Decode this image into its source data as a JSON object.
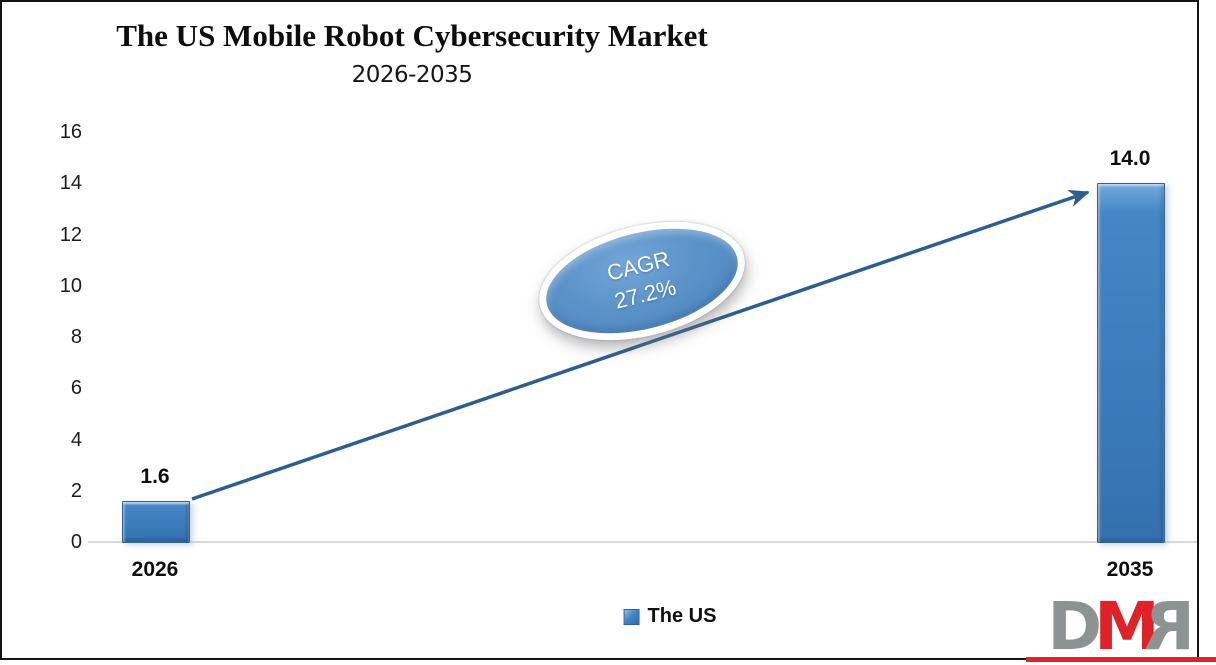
{
  "chart_data": {
    "type": "bar",
    "title": "The US Mobile Robot Cybersecurity Market",
    "subtitle": "2026-2035",
    "categories": [
      "2026",
      "2035"
    ],
    "series": [
      {
        "name": "The US",
        "values": [
          1.6,
          14.0
        ]
      }
    ],
    "value_labels": [
      "1.6",
      "14.0"
    ],
    "xlabel": "",
    "ylabel": "",
    "ylim": [
      0,
      16
    ],
    "yticks": [
      0,
      2,
      4,
      6,
      8,
      10,
      12,
      14,
      16
    ],
    "grid": false,
    "legend_position": "bottom",
    "annotation": {
      "line1": "CAGR",
      "line2": "27.2%"
    },
    "bar_color": "#3f81c1",
    "arrow_color": "#2d5e8e",
    "axis_line_color": "#d9d9d9"
  },
  "legend": {
    "label": "The US",
    "swatch_color": "#4181bd"
  },
  "logo": {
    "d": "D",
    "m": "M",
    "r": "R",
    "gray": "#8d9392",
    "red": "#e02228"
  }
}
